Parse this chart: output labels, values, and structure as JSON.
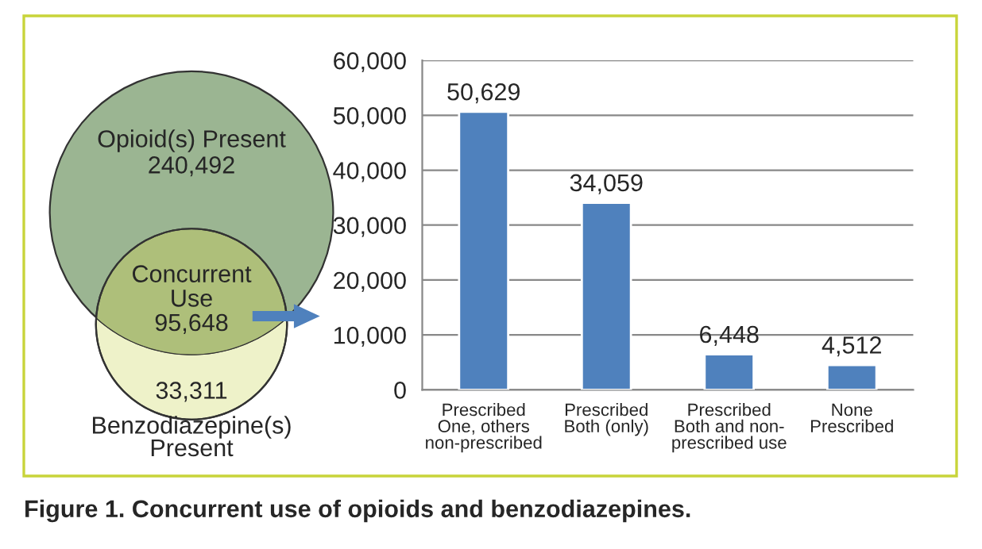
{
  "chart_data": [
    {
      "type": "other",
      "categories": [
        "Opioid(s) Present",
        "Concurrent\nUse",
        "Benzodiazepine(s)\nPresent"
      ],
      "values": [
        240492,
        95648,
        33311
      ],
      "value_labels": [
        "240,492",
        "95,648",
        "33,311"
      ],
      "colors": [
        "#9bb592",
        "#aebf7a",
        "#eef2c9"
      ]
    },
    {
      "type": "bar",
      "categories": [
        "Prescribed\nOne, others\nnon-prescribed",
        "Prescribed\nBoth (only)",
        "Prescribed\nBoth and non-\nprescribed use",
        "None\nPrescribed"
      ],
      "values": [
        50629,
        34059,
        6448,
        4512
      ],
      "color": "#4f81bd",
      "ylim": [
        0,
        60000
      ],
      "yticks": [
        {
          "value": 0,
          "label": "0"
        },
        {
          "value": 10000,
          "label": "10,000"
        },
        {
          "value": 20000,
          "label": "20,000"
        },
        {
          "value": 30000,
          "label": "30,000"
        },
        {
          "value": 40000,
          "label": "40,000"
        },
        {
          "value": 50000,
          "label": "50,000"
        },
        {
          "value": 60000,
          "label": "60,000"
        }
      ],
      "grid": "y",
      "value_labels": [
        "50,629",
        "34,059",
        "6,448",
        "4,512"
      ],
      "annotations": [
        "Figure 1. Concurrent use of opioids and benzodiazepines."
      ]
    }
  ]
}
